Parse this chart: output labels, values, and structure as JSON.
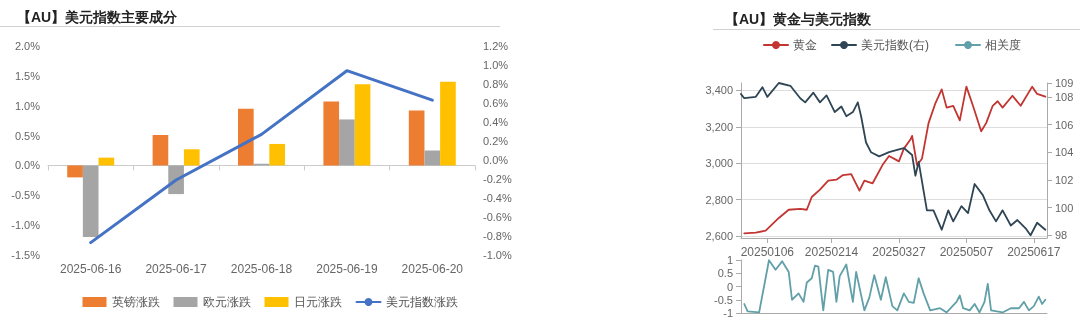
{
  "chart_data": [
    {
      "type": "bar",
      "title": "【AU】美元指数主要成分",
      "categories": [
        "2025-06-16",
        "2025-06-17",
        "2025-06-18",
        "2025-06-19",
        "2025-06-20"
      ],
      "series": [
        {
          "name": "英镑涨跌",
          "color": "#ed7d31",
          "values": [
            -0.2,
            0.51,
            0.95,
            1.07,
            0.92
          ]
        },
        {
          "name": "欧元涨跌",
          "color": "#a5a5a5",
          "values": [
            -1.2,
            -0.48,
            0.03,
            0.77,
            0.25
          ]
        },
        {
          "name": "日元涨跌",
          "color": "#ffc000",
          "values": [
            0.13,
            0.27,
            0.36,
            1.36,
            1.4
          ]
        },
        {
          "name": "美元指数涨跌",
          "type": "line",
          "axis": "y2",
          "color": "#4472c4",
          "values": [
            -0.87,
            -0.21,
            0.27,
            0.94,
            0.63
          ]
        }
      ],
      "ylim": [
        -1.5,
        2
      ],
      "yticks": [
        {
          "value": -1.5,
          "label": "-1.5%"
        },
        {
          "value": -1,
          "label": "-1.0%"
        },
        {
          "value": -0.5,
          "label": "-0.5%"
        },
        {
          "value": 0,
          "label": "0.0%"
        },
        {
          "value": 0.5,
          "label": "0.5%"
        },
        {
          "value": 1,
          "label": "1.0%"
        },
        {
          "value": 1.5,
          "label": "1.5%"
        },
        {
          "value": 2,
          "label": "2.0%"
        }
      ],
      "y2lim": [
        -1,
        1.2
      ],
      "y2ticks": [
        {
          "value": -1,
          "label": "-1.0%"
        },
        {
          "value": -0.8,
          "label": "-0.8%"
        },
        {
          "value": -0.6,
          "label": "-0.6%"
        },
        {
          "value": -0.4,
          "label": "-0.4%"
        },
        {
          "value": -0.2,
          "label": "-0.2%"
        },
        {
          "value": 0,
          "label": "0.0%"
        },
        {
          "value": 0.2,
          "label": "0.2%"
        },
        {
          "value": 0.4,
          "label": "0.4%"
        },
        {
          "value": 0.6,
          "label": "0.6%"
        },
        {
          "value": 0.8,
          "label": "0.8%"
        },
        {
          "value": 1,
          "label": "1.0%"
        },
        {
          "value": 1.2,
          "label": "1.2%"
        }
      ],
      "legend": "bottom",
      "marker": "none"
    },
    {
      "type": "line",
      "title": "【AU】黄金与美元指数",
      "series": [
        {
          "name": "黄金",
          "color": "#c23531",
          "x": [
            "2024-12-23",
            "2024-12-30",
            "2025-01-05",
            "2025-01-13",
            "2025-01-19",
            "2025-01-26",
            "2025-01-30",
            "2025-02-02",
            "2025-02-07",
            "2025-02-12",
            "2025-02-17",
            "2025-02-21",
            "2025-02-26",
            "2025-03-03",
            "2025-03-06",
            "2025-03-11",
            "2025-03-17",
            "2025-03-21",
            "2025-03-27",
            "2025-03-30",
            "2025-04-03",
            "2025-04-04",
            "2025-04-07",
            "2025-04-10",
            "2025-04-14",
            "2025-04-18",
            "2025-04-22",
            "2025-04-25",
            "2025-04-29",
            "2025-05-03",
            "2025-05-07",
            "2025-05-11",
            "2025-05-16",
            "2025-05-19",
            "2025-05-23",
            "2025-05-26",
            "2025-05-29",
            "2025-06-04",
            "2025-06-09",
            "2025-06-16",
            "2025-06-19",
            "2025-06-24"
          ],
          "values": [
            2615,
            2620,
            2630,
            2700,
            2745,
            2750,
            2745,
            2815,
            2855,
            2905,
            2910,
            2935,
            2940,
            2850,
            2905,
            2890,
            2990,
            3040,
            3010,
            3080,
            3130,
            3150,
            2990,
            3025,
            3220,
            3325,
            3405,
            3305,
            3315,
            3235,
            3420,
            3315,
            3175,
            3220,
            3315,
            3340,
            3305,
            3370,
            3315,
            3420,
            3380,
            3365
          ]
        },
        {
          "name": "美元指数(右)",
          "color": "#2f4554",
          "axis": "y2",
          "x": [
            "2024-12-21",
            "2024-12-23",
            "2024-12-30",
            "2025-01-03",
            "2025-01-06",
            "2025-01-13",
            "2025-01-20",
            "2025-01-26",
            "2025-01-29",
            "2025-02-03",
            "2025-02-07",
            "2025-02-11",
            "2025-02-16",
            "2025-02-20",
            "2025-02-23",
            "2025-02-27",
            "2025-03-02",
            "2025-03-04",
            "2025-03-07",
            "2025-03-10",
            "2025-03-15",
            "2025-03-21",
            "2025-03-27",
            "2025-03-30",
            "2025-04-04",
            "2025-04-06",
            "2025-04-08",
            "2025-04-13",
            "2025-04-17",
            "2025-04-22",
            "2025-04-26",
            "2025-04-29",
            "2025-05-04",
            "2025-05-08",
            "2025-05-12",
            "2025-05-17",
            "2025-05-21",
            "2025-05-25",
            "2025-05-29",
            "2025-06-03",
            "2025-06-07",
            "2025-06-12",
            "2025-06-15",
            "2025-06-19",
            "2025-06-24"
          ],
          "values": [
            108.2,
            107.9,
            108.0,
            108.7,
            108.0,
            109.0,
            108.8,
            107.9,
            107.6,
            108.3,
            107.6,
            108.1,
            106.9,
            107.3,
            106.6,
            106.9,
            107.6,
            106.6,
            104.7,
            104.0,
            103.7,
            104.0,
            104.2,
            104.3,
            103.8,
            102.3,
            103.3,
            99.8,
            99.8,
            98.4,
            99.8,
            99.0,
            100.1,
            99.6,
            101.7,
            100.9,
            99.8,
            99.0,
            99.8,
            98.7,
            99.1,
            98.5,
            98.0,
            98.9,
            98.4
          ]
        }
      ],
      "xlim": [
        "2024-12-21",
        "2025-06-25"
      ],
      "xticks": [
        {
          "value": "2025-01-06",
          "label": "20250106"
        },
        {
          "value": "2025-02-14",
          "label": "20250214"
        },
        {
          "value": "2025-03-27",
          "label": "20250327"
        },
        {
          "value": "2025-05-07",
          "label": "20250507"
        },
        {
          "value": "2025-06-17",
          "label": "20250617"
        }
      ],
      "ylim": [
        2590,
        3440
      ],
      "yticks": [
        {
          "value": 2600,
          "label": "2,600"
        },
        {
          "value": 2800,
          "label": "2,800"
        },
        {
          "value": 3000,
          "label": "3,000"
        },
        {
          "value": 3200,
          "label": "3,200"
        },
        {
          "value": 3400,
          "label": "3,400"
        }
      ],
      "y2lim": [
        97.8,
        109
      ],
      "y2ticks": [
        98,
        100,
        102,
        104,
        106,
        108,
        109
      ],
      "grid": "y",
      "legend": "top",
      "marker": "none"
    },
    {
      "type": "line",
      "series": [
        {
          "name": "相关度",
          "color": "#61a0a8",
          "x": [
            "2024-12-23",
            "2024-12-25",
            "2025-01-01",
            "2025-01-04",
            "2025-01-07",
            "2025-01-11",
            "2025-01-15",
            "2025-01-19",
            "2025-01-21",
            "2025-01-25",
            "2025-01-28",
            "2025-01-30",
            "2025-02-02",
            "2025-02-04",
            "2025-02-06",
            "2025-02-09",
            "2025-02-12",
            "2025-02-15",
            "2025-02-17",
            "2025-02-19",
            "2025-02-23",
            "2025-02-27",
            "2025-03-01",
            "2025-03-06",
            "2025-03-09",
            "2025-03-12",
            "2025-03-16",
            "2025-03-19",
            "2025-03-23",
            "2025-03-26",
            "2025-03-30",
            "2025-04-02",
            "2025-04-05",
            "2025-04-08",
            "2025-04-11",
            "2025-04-15",
            "2025-04-21",
            "2025-04-25",
            "2025-05-01",
            "2025-05-03",
            "2025-05-05",
            "2025-05-09",
            "2025-05-12",
            "2025-05-15",
            "2025-05-18",
            "2025-05-20",
            "2025-05-22",
            "2025-05-29",
            "2025-06-03",
            "2025-06-08",
            "2025-06-11",
            "2025-06-14",
            "2025-06-17",
            "2025-06-20",
            "2025-06-22",
            "2025-06-24"
          ],
          "values": [
            -0.66,
            -0.94,
            -0.98,
            0,
            0.99,
            0.63,
            0.95,
            0.55,
            -0.5,
            -0.26,
            -0.58,
            0.15,
            0.31,
            0.79,
            0.75,
            -0.9,
            0.63,
            0.55,
            -0.58,
            0.39,
            0.83,
            -0.58,
            0.55,
            -0.9,
            -0.42,
            0.43,
            -0.5,
            0.35,
            -0.74,
            -0.9,
            -0.26,
            -0.58,
            -0.62,
            0.31,
            -0.26,
            -0.9,
            -0.82,
            -0.98,
            -0.58,
            -0.34,
            -0.82,
            -0.9,
            -0.66,
            -0.98,
            -0.58,
            0.1,
            -0.9,
            -0.98,
            -0.82,
            -0.82,
            -0.58,
            -0.9,
            -0.74,
            -0.38,
            -0.66,
            -0.5
          ]
        }
      ],
      "xlim": [
        "2024-12-21",
        "2025-06-25"
      ],
      "ylim": [
        -1,
        1
      ],
      "yticks": [
        -1,
        -0.5,
        0,
        0.5,
        1
      ],
      "tick_labels": "y",
      "legend": "top",
      "marker": "none"
    }
  ]
}
